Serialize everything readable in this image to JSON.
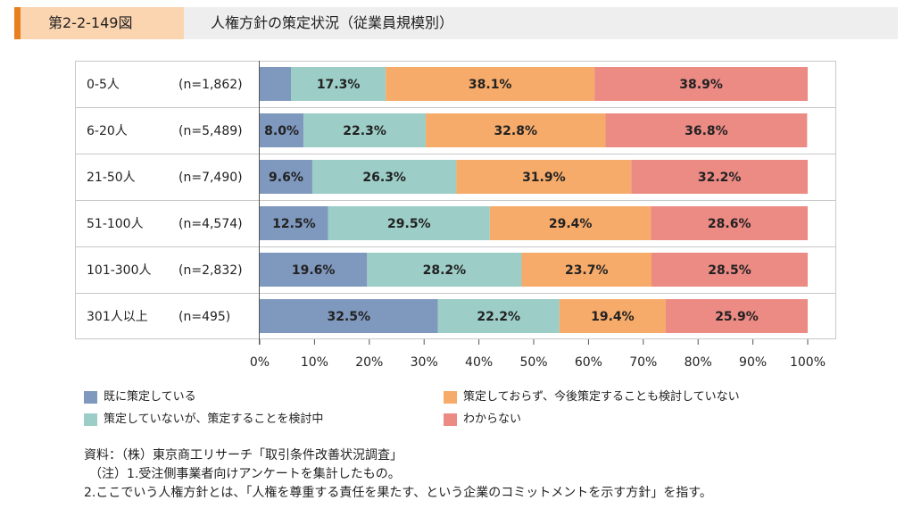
{
  "header": {
    "figure_number": "第2-2-149図",
    "title": "人権方針の策定状況（従業員規模別）"
  },
  "chart_data": {
    "type": "bar",
    "orientation": "horizontal",
    "stacked": true,
    "categories": [
      "0-5人",
      "6-20人",
      "21-50人",
      "51-100人",
      "101-300人",
      "301人以上"
    ],
    "sample_sizes": [
      "(n=1,862)",
      "(n=5,489)",
      "(n=7,490)",
      "(n=4,574)",
      "(n=2,832)",
      "(n=495)"
    ],
    "series": [
      {
        "name": "既に策定している",
        "color": "#7f98be",
        "values": [
          5.7,
          8.0,
          9.6,
          12.5,
          19.6,
          32.5
        ],
        "labels": [
          "",
          "8.0%",
          "9.6%",
          "12.5%",
          "19.6%",
          "32.5%"
        ]
      },
      {
        "name": "策定していないが、策定することを検討中",
        "color": "#9ccdc7",
        "values": [
          17.3,
          22.3,
          26.3,
          29.5,
          28.2,
          22.2
        ],
        "labels": [
          "17.3%",
          "22.3%",
          "26.3%",
          "29.5%",
          "28.2%",
          "22.2%"
        ]
      },
      {
        "name": "策定しておらず、今後策定することも検討していない",
        "color": "#f6ab6a",
        "values": [
          38.1,
          32.8,
          31.9,
          29.4,
          23.7,
          19.4
        ],
        "labels": [
          "38.1%",
          "32.8%",
          "31.9%",
          "29.4%",
          "23.7%",
          "19.4%"
        ]
      },
      {
        "name": "わからない",
        "color": "#ec8a84",
        "values": [
          38.9,
          36.8,
          32.2,
          28.6,
          28.5,
          25.9
        ],
        "labels": [
          "38.9%",
          "36.8%",
          "32.2%",
          "28.6%",
          "28.5%",
          "25.9%"
        ]
      }
    ],
    "xlim": [
      0,
      100
    ],
    "xticks": [
      "0%",
      "10%",
      "20%",
      "30%",
      "40%",
      "50%",
      "60%",
      "70%",
      "80%",
      "90%",
      "100%"
    ]
  },
  "notes": {
    "source": "資料：（株）東京商工リサーチ「取引条件改善状況調査」",
    "note1": "（注）1.受注側事業者向けアンケートを集計したもの。",
    "note2": "2.ここでいう人権方針とは、「人権を尊重する責任を果たす、という企業のコミットメントを示す方針」を指す。"
  }
}
